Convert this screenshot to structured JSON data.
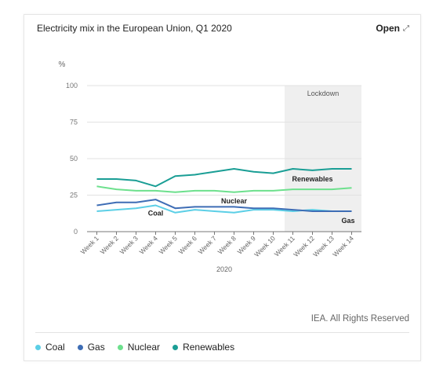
{
  "header": {
    "title": "Electricity mix in the European Union, Q1 2020",
    "open_label": "Open",
    "open_icon": "external-link-icon"
  },
  "credit": "IEA. All Rights Reserved",
  "chart_data": {
    "type": "line",
    "title": "Electricity mix in the European Union, Q1 2020",
    "ylabel": "%",
    "xlabel": "2020",
    "ylim": [
      0,
      100
    ],
    "yticks": [
      0,
      25,
      50,
      75,
      100
    ],
    "grid": true,
    "categories": [
      "Week 1",
      "Week 2",
      "Week 3",
      "Week 4",
      "Week 5",
      "Week 6",
      "Week 7",
      "Week 8",
      "Week 9",
      "Week 10",
      "Week 11",
      "Week 12",
      "Week 13",
      "Week 14"
    ],
    "shaded_region": {
      "from": "Week 11",
      "to": "Week 14",
      "label": "Lockdown"
    },
    "series": [
      {
        "name": "Coal",
        "color": "#5ccfe6",
        "label_at": "Week 4",
        "values": [
          14,
          15,
          16,
          18,
          13,
          15,
          14,
          13,
          15,
          15,
          14,
          15,
          14,
          14
        ]
      },
      {
        "name": "Gas",
        "color": "#3e6db5",
        "label_at": "Week 14",
        "values": [
          18,
          20,
          20,
          22,
          16,
          17,
          17,
          17,
          16,
          16,
          15,
          14,
          14,
          14
        ]
      },
      {
        "name": "Nuclear",
        "color": "#6de08d",
        "label_at": "Week 8",
        "values": [
          31,
          29,
          28,
          28,
          27,
          28,
          28,
          27,
          28,
          28,
          29,
          29,
          29,
          30
        ]
      },
      {
        "name": "Renewables",
        "color": "#1a9e95",
        "label_at": "Week 12",
        "values": [
          36,
          36,
          35,
          31,
          38,
          39,
          41,
          43,
          41,
          40,
          43,
          42,
          43,
          43
        ]
      }
    ]
  }
}
